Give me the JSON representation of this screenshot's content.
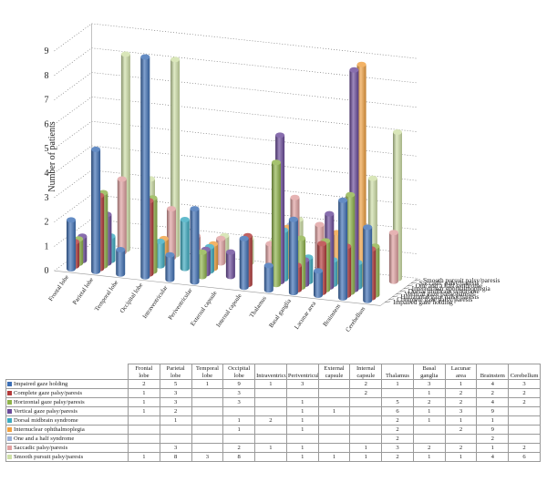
{
  "chart_data": {
    "type": "bar",
    "subtype": "3d-bar",
    "ylabel": "Number of patients",
    "ylim": [
      0,
      9
    ],
    "yticks": [
      0,
      1,
      2,
      3,
      4,
      5,
      6,
      7,
      8,
      9
    ],
    "grid": true,
    "legend": "right",
    "categories": [
      "Frontal lobe",
      "Parietal lobe",
      "Temporal lobe",
      "Occipital lobe",
      "Intraventricular",
      "Periventricular",
      "External capsule",
      "Internal capsule",
      "Thalamus",
      "Basal ganglia",
      "Lacunar area",
      "Brainstem",
      "Cerebellum"
    ],
    "table_headers": [
      "Frontal lobe",
      "Parietal lobe",
      "Temporal lobe",
      "Occipital lobe",
      "Intraventricular",
      "Periventricular",
      "External capsule",
      "Internal capsule",
      "Thalamus",
      "Basal ganglia",
      "Lacunar area",
      "Brainstem",
      "Cerebellum"
    ],
    "series": [
      {
        "name": "Impaired gaze holding",
        "color": "#3d6fb5",
        "values": [
          2,
          5,
          1,
          9,
          1,
          3,
          null,
          2,
          1,
          3,
          1,
          4,
          3
        ]
      },
      {
        "name": "Complete gaze palsy/paresis",
        "color": "#b33a3a",
        "values": [
          1,
          3,
          null,
          3,
          null,
          null,
          null,
          2,
          null,
          1,
          2,
          2,
          2
        ]
      },
      {
        "name": "Horizontal gaze palsy/paresis",
        "color": "#8fb34a",
        "values": [
          1,
          3,
          null,
          3,
          null,
          1,
          null,
          null,
          5,
          2,
          2,
          4,
          2
        ]
      },
      {
        "name": "Vertical gaze palsy/paresis",
        "color": "#6a4a9a",
        "values": [
          1,
          2,
          null,
          null,
          null,
          1,
          1,
          null,
          6,
          1,
          3,
          9,
          null
        ]
      },
      {
        "name": "Dorsal midbrain syndrome",
        "color": "#3aaac0",
        "values": [
          null,
          1,
          null,
          1,
          2,
          1,
          null,
          null,
          2,
          1,
          1,
          1,
          null
        ]
      },
      {
        "name": "Internuclear ophthalmoplegia",
        "color": "#f0a040",
        "values": [
          null,
          null,
          null,
          1,
          null,
          1,
          null,
          null,
          2,
          null,
          2,
          9,
          null
        ]
      },
      {
        "name": "One and a half syndrome",
        "color": "#9ab0d8",
        "values": [
          null,
          null,
          null,
          null,
          null,
          null,
          null,
          null,
          2,
          null,
          null,
          2,
          null
        ]
      },
      {
        "name": "Saccadic palsy/paresis",
        "color": "#e0a0a0",
        "values": [
          null,
          3,
          null,
          2,
          1,
          1,
          null,
          1,
          3,
          2,
          2,
          1,
          2
        ]
      },
      {
        "name": "Smooth pursuit palsy/paresis",
        "color": "#cfe0a8",
        "values": [
          1,
          8,
          3,
          8,
          null,
          1,
          1,
          1,
          2,
          1,
          1,
          4,
          6
        ]
      }
    ]
  }
}
